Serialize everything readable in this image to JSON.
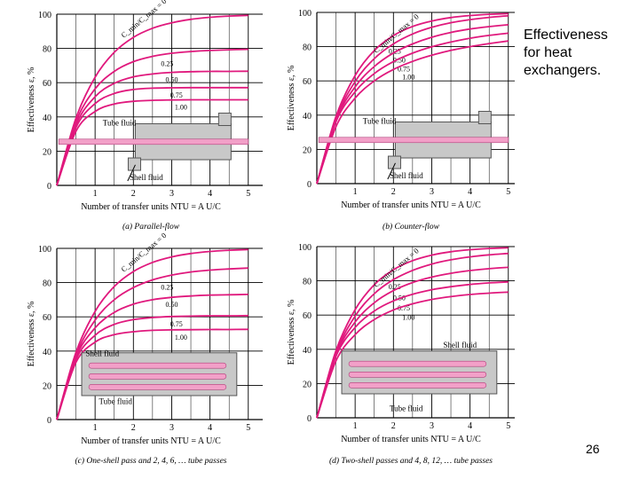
{
  "slide": {
    "title_lines": [
      "Effectiveness",
      "for heat",
      "exchangers."
    ],
    "page_number": "26"
  },
  "colors": {
    "curve": "#e0197d",
    "grid": "#000000",
    "fluid_pipe": "#f2a0c8",
    "shell_fill": "#c8c8c8"
  },
  "chart_data": [
    {
      "type": "line",
      "panel": "(a) Parallel-flow",
      "ylabel": "Effectiveness ε, %",
      "xlabel": "Number of transfer units NTU = A_s U/C_min",
      "xlim": [
        0,
        5
      ],
      "ylim": [
        0,
        100
      ],
      "xticks": [
        "1",
        "2",
        "3",
        "4",
        "5"
      ],
      "yticks": [
        "0",
        "20",
        "40",
        "60",
        "80",
        "100"
      ],
      "param_label": "C_min/C_max = 0",
      "series": [
        {
          "name": "0",
          "x": [
            0,
            0.5,
            1,
            1.5,
            2,
            2.5,
            3,
            3.5,
            4,
            4.5,
            5
          ],
          "values": [
            0,
            39.3,
            63.2,
            77.7,
            86.5,
            91.8,
            95.0,
            97.0,
            98.2,
            98.9,
            99.3
          ]
        },
        {
          "name": "0.25",
          "x": [
            0,
            0.5,
            1,
            1.5,
            2,
            2.5,
            3,
            3.5,
            4,
            4.5,
            5
          ],
          "values": [
            0,
            37.2,
            56.4,
            66.6,
            72.3,
            75.4,
            77.2,
            78.2,
            78.8,
            79.2,
            79.5
          ]
        },
        {
          "name": "0.50",
          "x": [
            0,
            0.5,
            1,
            1.5,
            2,
            2.5,
            3,
            3.5,
            4,
            4.5,
            5
          ],
          "values": [
            0,
            35.4,
            51.8,
            59.6,
            63.4,
            65.1,
            66.0,
            66.4,
            66.6,
            66.6,
            66.7
          ]
        },
        {
          "name": "0.75",
          "x": [
            0,
            0.5,
            1,
            1.5,
            2,
            2.5,
            3,
            3.5,
            4,
            4.5,
            5
          ],
          "values": [
            0,
            33.8,
            47.8,
            53.7,
            56.0,
            56.8,
            57.0,
            57.1,
            57.1,
            57.1,
            57.1
          ]
        },
        {
          "name": "1.00",
          "x": [
            0,
            0.5,
            1,
            1.5,
            2,
            2.5,
            3,
            3.5,
            4,
            4.5,
            5
          ],
          "values": [
            0,
            31.6,
            43.2,
            47.5,
            49.1,
            49.7,
            49.9,
            50.0,
            50.0,
            50.0,
            50.0
          ]
        }
      ],
      "inset": {
        "labels": [
          "Tube fluid",
          "Shell fluid"
        ]
      }
    },
    {
      "type": "line",
      "panel": "(b) Counter-flow",
      "ylabel": "Effectiveness ε, %",
      "xlabel": "Number of transfer units NTU = A_s U/C_min",
      "xlim": [
        0,
        5
      ],
      "ylim": [
        0,
        100
      ],
      "xticks": [
        "1",
        "2",
        "3",
        "4",
        "5"
      ],
      "yticks": [
        "0",
        "20",
        "40",
        "60",
        "80",
        "100"
      ],
      "param_label": "C_min/C_max = 0",
      "series": [
        {
          "name": "0",
          "x": [
            0,
            0.5,
            1,
            1.5,
            2,
            2.5,
            3,
            3.5,
            4,
            4.5,
            5
          ],
          "values": [
            0,
            39.3,
            63.2,
            77.7,
            86.5,
            91.8,
            95.0,
            97.0,
            98.2,
            98.9,
            99.3
          ]
        },
        {
          "name": "0.25",
          "x": [
            0,
            0.5,
            1,
            1.5,
            2,
            2.5,
            3,
            3.5,
            4,
            4.5,
            5
          ],
          "values": [
            0,
            38.0,
            59.7,
            73.0,
            81.6,
            87.4,
            91.3,
            94.0,
            95.8,
            97.1,
            98.0
          ]
        },
        {
          "name": "0.50",
          "x": [
            0,
            0.5,
            1,
            1.5,
            2,
            2.5,
            3,
            3.5,
            4,
            4.5,
            5
          ],
          "values": [
            0,
            37.2,
            56.6,
            68.4,
            76.3,
            81.6,
            85.5,
            88.3,
            90.3,
            91.7,
            92.8
          ]
        },
        {
          "name": "0.75",
          "x": [
            0,
            0.5,
            1,
            1.5,
            2,
            2.5,
            3,
            3.5,
            4,
            4.5,
            5
          ],
          "values": [
            0,
            36.2,
            53.7,
            64.3,
            71.3,
            76.2,
            79.9,
            82.7,
            84.9,
            86.6,
            87.9
          ]
        },
        {
          "name": "1.00",
          "x": [
            0,
            0.5,
            1,
            1.5,
            2,
            2.5,
            3,
            3.5,
            4,
            4.5,
            5
          ],
          "values": [
            0,
            33.3,
            50.0,
            60.0,
            66.7,
            71.4,
            75.0,
            77.8,
            80.0,
            81.8,
            83.3
          ]
        }
      ],
      "inset": {
        "labels": [
          "Tube fluid",
          "Shell fluid"
        ]
      }
    },
    {
      "type": "line",
      "panel": "(c) One-shell pass and 2, 4, 6, … tube passes",
      "ylabel": "Effectiveness ε, %",
      "xlabel": "Number of transfer units NTU = A_s U/C_min",
      "xlim": [
        0,
        5
      ],
      "ylim": [
        0,
        100
      ],
      "xticks": [
        "1",
        "2",
        "3",
        "4",
        "5"
      ],
      "yticks": [
        "0",
        "20",
        "40",
        "60",
        "80",
        "100"
      ],
      "param_label": "C_min/C_max = 0",
      "series": [
        {
          "name": "0",
          "x": [
            0,
            0.5,
            1,
            1.5,
            2,
            2.5,
            3,
            3.5,
            4,
            4.5,
            5
          ],
          "values": [
            0,
            39.3,
            63.2,
            77.7,
            86.5,
            91.8,
            95.0,
            97.0,
            98.2,
            98.9,
            99.3
          ]
        },
        {
          "name": "0.25",
          "x": [
            0,
            0.5,
            1,
            1.5,
            2,
            2.5,
            3,
            3.5,
            4,
            4.5,
            5
          ],
          "values": [
            0,
            37.6,
            58.1,
            70.0,
            77.1,
            81.6,
            84.4,
            86.2,
            87.3,
            88.0,
            88.5
          ]
        },
        {
          "name": "0.50",
          "x": [
            0,
            0.5,
            1,
            1.5,
            2,
            2.5,
            3,
            3.5,
            4,
            4.5,
            5
          ],
          "values": [
            0,
            36.4,
            53.6,
            62.6,
            67.4,
            70.0,
            71.4,
            72.2,
            72.7,
            72.9,
            73.1
          ]
        },
        {
          "name": "0.75",
          "x": [
            0,
            0.5,
            1,
            1.5,
            2,
            2.5,
            3,
            3.5,
            4,
            4.5,
            5
          ],
          "values": [
            0,
            35.1,
            49.3,
            55.6,
            58.4,
            59.6,
            60.2,
            60.4,
            60.6,
            60.6,
            60.7
          ]
        },
        {
          "name": "1.00",
          "x": [
            0,
            0.5,
            1,
            1.5,
            2,
            2.5,
            3,
            3.5,
            4,
            4.5,
            5
          ],
          "values": [
            0,
            33.4,
            45.3,
            49.6,
            51.3,
            52.1,
            52.4,
            52.5,
            52.6,
            52.6,
            52.7
          ]
        }
      ],
      "inset": {
        "labels": [
          "Shell fluid",
          "Tube fluid"
        ]
      }
    },
    {
      "type": "line",
      "panel": "(d) Two-shell passes and 4, 8, 12, … tube passes",
      "ylabel": "Effectiveness ε, %",
      "xlabel": "Number of transfer units NTU = A_s U/C_min",
      "xlim": [
        0,
        5
      ],
      "ylim": [
        0,
        100
      ],
      "xticks": [
        "1",
        "2",
        "3",
        "4",
        "5"
      ],
      "yticks": [
        "0",
        "20",
        "40",
        "60",
        "80",
        "100"
      ],
      "param_label": "C_min/C_max = 0",
      "series": [
        {
          "name": "0",
          "x": [
            0,
            0.5,
            1,
            1.5,
            2,
            2.5,
            3,
            3.5,
            4,
            4.5,
            5
          ],
          "values": [
            0,
            39.3,
            63.2,
            77.7,
            86.5,
            91.8,
            95.0,
            97.0,
            98.2,
            98.9,
            99.3
          ]
        },
        {
          "name": "0.25",
          "x": [
            0,
            0.5,
            1,
            1.5,
            2,
            2.5,
            3,
            3.5,
            4,
            4.5,
            5
          ],
          "values": [
            0,
            37.9,
            59.5,
            72.5,
            80.7,
            86.1,
            89.8,
            92.3,
            94.0,
            95.2,
            96.0
          ]
        },
        {
          "name": "0.50",
          "x": [
            0,
            0.5,
            1,
            1.5,
            2,
            2.5,
            3,
            3.5,
            4,
            4.5,
            5
          ],
          "values": [
            0,
            37.0,
            56.0,
            67.2,
            74.3,
            79.0,
            82.2,
            84.4,
            86.0,
            87.1,
            87.9
          ]
        },
        {
          "name": "0.75",
          "x": [
            0,
            0.5,
            1,
            1.5,
            2,
            2.5,
            3,
            3.5,
            4,
            4.5,
            5
          ],
          "values": [
            0,
            36.0,
            52.8,
            62.4,
            68.3,
            72.2,
            74.8,
            76.6,
            77.9,
            78.8,
            79.4
          ]
        },
        {
          "name": "1.00",
          "x": [
            0,
            0.5,
            1,
            1.5,
            2,
            2.5,
            3,
            3.5,
            4,
            4.5,
            5
          ],
          "values": [
            0,
            33.3,
            48.6,
            57.4,
            63.0,
            66.6,
            69.1,
            70.8,
            72.0,
            72.8,
            73.4
          ]
        }
      ],
      "inset": {
        "labels": [
          "Shell fluid",
          "Tube fluid"
        ]
      }
    }
  ]
}
